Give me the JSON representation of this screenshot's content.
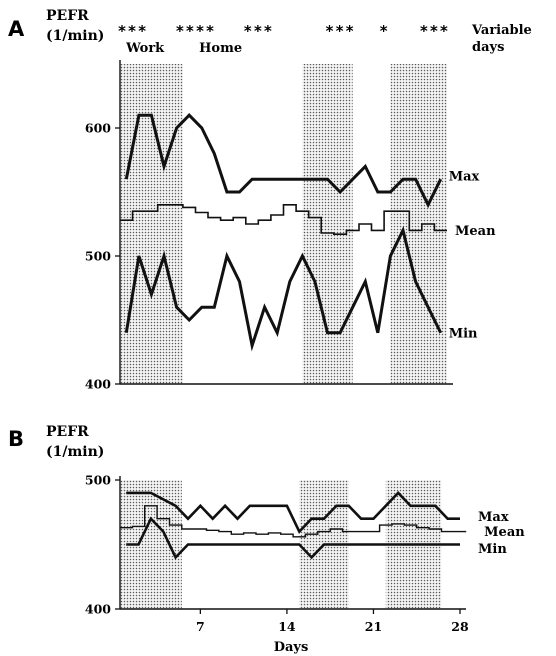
{
  "chart_data": [
    {
      "panel": "A",
      "type": "line",
      "ylabel": "PEFR",
      "yunit": "(1/min)",
      "ylim": [
        400,
        650
      ],
      "yticks": [
        400,
        500,
        600
      ],
      "xlim": [
        0.5,
        26.5
      ],
      "shaded_periods": [
        [
          0.5,
          5.5
        ],
        [
          15,
          19
        ],
        [
          22,
          26.5
        ]
      ],
      "period_labels": [
        {
          "text": "Work",
          "x": 2.5
        },
        {
          "text": "Home",
          "x": 8.5
        }
      ],
      "variable_days_marks": [
        {
          "text": "* * *",
          "x": 1.5
        },
        {
          "text": "* * * *",
          "x": 6.5
        },
        {
          "text": "* * *",
          "x": 11.5
        },
        {
          "text": "* * *",
          "x": 18
        },
        {
          "text": "*",
          "x": 21.5
        },
        {
          "text": "* * *",
          "x": 25.5
        }
      ],
      "variable_days_label": [
        "Variable",
        "days"
      ],
      "series": [
        {
          "name": "Max",
          "style": "line",
          "x": [
            1,
            2,
            3,
            4,
            5,
            6,
            7,
            8,
            9,
            10,
            11,
            12,
            13,
            14,
            15,
            16,
            17,
            18,
            19,
            20,
            21,
            22,
            23,
            24,
            25,
            26
          ],
          "y": [
            560,
            610,
            610,
            570,
            600,
            610,
            600,
            580,
            550,
            550,
            560,
            560,
            560,
            560,
            560,
            560,
            560,
            550,
            560,
            570,
            550,
            550,
            560,
            560,
            540,
            560
          ]
        },
        {
          "name": "Mean",
          "style": "step",
          "x": [
            1,
            2,
            3,
            4,
            5,
            6,
            7,
            8,
            9,
            10,
            11,
            12,
            13,
            14,
            15,
            16,
            17,
            18,
            19,
            20,
            21,
            22,
            23,
            24,
            25,
            26
          ],
          "y": [
            528,
            535,
            535,
            540,
            540,
            538,
            534,
            530,
            528,
            530,
            525,
            528,
            532,
            540,
            535,
            530,
            518,
            517,
            520,
            525,
            520,
            535,
            535,
            520,
            525,
            520
          ]
        },
        {
          "name": "Min",
          "style": "line",
          "x": [
            1,
            2,
            3,
            4,
            5,
            6,
            7,
            8,
            9,
            10,
            11,
            12,
            13,
            14,
            15,
            16,
            17,
            18,
            19,
            20,
            21,
            22,
            23,
            24,
            25,
            26
          ],
          "y": [
            440,
            500,
            470,
            500,
            460,
            450,
            460,
            460,
            500,
            480,
            430,
            460,
            440,
            480,
            500,
            480,
            440,
            440,
            460,
            480,
            440,
            500,
            520,
            480,
            460,
            440
          ]
        }
      ]
    },
    {
      "panel": "B",
      "type": "line",
      "ylabel": "PEFR",
      "yunit": "(1/min)",
      "xlabel": "Days",
      "ylim": [
        400,
        500
      ],
      "yticks": [
        400,
        500
      ],
      "xlim": [
        0.5,
        28
      ],
      "xticks": [
        7,
        14,
        21,
        28
      ],
      "shaded_periods": [
        [
          0.5,
          5.5
        ],
        [
          15,
          19
        ],
        [
          22,
          26.5
        ]
      ],
      "series": [
        {
          "name": "Max",
          "style": "line",
          "x": [
            1,
            2,
            3,
            4,
            5,
            6,
            7,
            8,
            9,
            10,
            11,
            12,
            13,
            14,
            15,
            16,
            17,
            18,
            19,
            20,
            21,
            22,
            23,
            24,
            25,
            26,
            27,
            28
          ],
          "y": [
            490,
            490,
            490,
            485,
            480,
            470,
            480,
            470,
            480,
            470,
            480,
            480,
            480,
            480,
            460,
            470,
            470,
            480,
            480,
            470,
            470,
            480,
            490,
            480,
            480,
            480,
            470,
            470
          ]
        },
        {
          "name": "Mean",
          "style": "step",
          "x": [
            1,
            2,
            3,
            4,
            5,
            6,
            7,
            8,
            9,
            10,
            11,
            12,
            13,
            14,
            15,
            16,
            17,
            18,
            19,
            20,
            21,
            22,
            23,
            24,
            25,
            26,
            27,
            28
          ],
          "y": [
            463,
            464,
            480,
            470,
            465,
            462,
            462,
            461,
            460,
            458,
            459,
            458,
            459,
            458,
            456,
            458,
            460,
            462,
            460,
            460,
            460,
            465,
            466,
            465,
            463,
            462,
            460,
            460
          ]
        },
        {
          "name": "Min",
          "style": "line",
          "x": [
            1,
            2,
            3,
            4,
            5,
            6,
            7,
            8,
            9,
            10,
            11,
            12,
            13,
            14,
            15,
            16,
            17,
            18,
            19,
            20,
            21,
            22,
            23,
            24,
            25,
            26,
            27,
            28
          ],
          "y": [
            450,
            450,
            470,
            460,
            440,
            450,
            450,
            450,
            450,
            450,
            450,
            450,
            450,
            450,
            450,
            440,
            450,
            450,
            450,
            450,
            450,
            450,
            450,
            450,
            450,
            450,
            450,
            450
          ]
        }
      ]
    }
  ]
}
